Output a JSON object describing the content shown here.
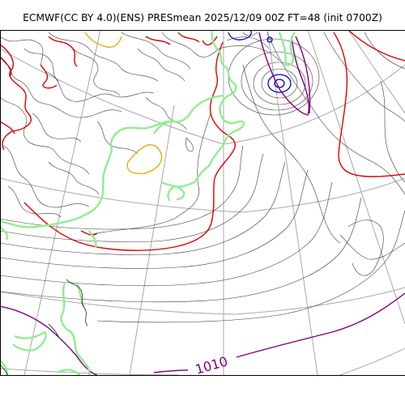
{
  "map": {
    "title": "ECMWF(CC BY 4.0)(ENS) PRESmean 2025/12/09 00Z FT=48 (init 0700Z)",
    "contour_label": "1010",
    "colors": {
      "isobar": "#3a3a3a",
      "isobar_highlight_red": "#e00000",
      "isobar_highlight_purple": "#800080",
      "isobar_low_blue": "#0000d0",
      "terrain_orange": "#f0a000",
      "coastline_green": "#90ee90",
      "graticule": "#a8a8a8"
    }
  }
}
